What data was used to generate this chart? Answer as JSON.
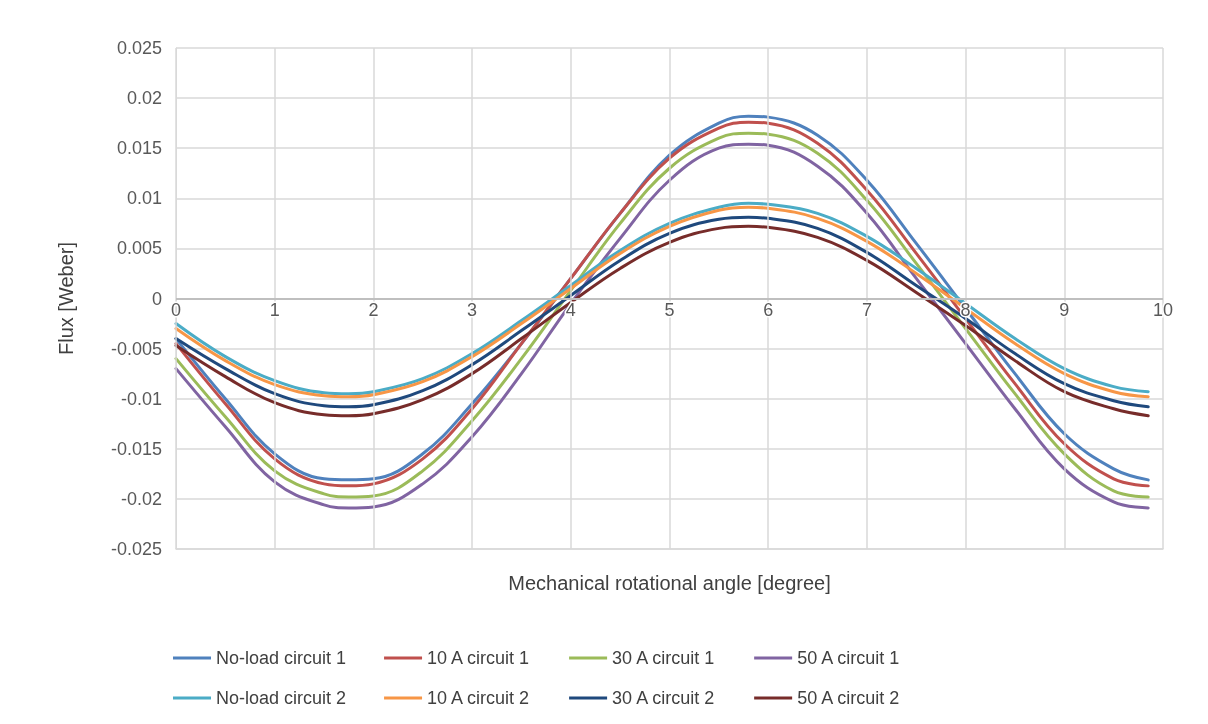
{
  "chart_data": {
    "type": "line",
    "xlabel": "Mechanical rotational angle [degree]",
    "ylabel": "Flux [Weber]",
    "x": [
      0,
      0.5,
      1,
      1.5,
      1.75,
      2,
      2.5,
      3,
      3.5,
      4,
      4.5,
      5,
      5.5,
      5.8,
      6,
      6.5,
      7,
      7.5,
      8,
      8.5,
      9,
      9.5,
      9.85
    ],
    "xlim": [
      0,
      10
    ],
    "xticks": [
      0,
      1,
      2,
      3,
      4,
      5,
      6,
      7,
      8,
      9,
      10
    ],
    "ylim": [
      -0.025,
      0.025
    ],
    "yticks": [
      -0.025,
      -0.02,
      -0.015,
      -0.01,
      -0.005,
      0,
      0.005,
      0.01,
      0.015,
      0.02,
      0.025
    ],
    "grid": true,
    "legend": "bottom",
    "marker": "none",
    "line_style": "solid",
    "series": [
      {
        "name": "No-load circuit 1",
        "color": "#4f81bd",
        "values": [
          -0.004,
          -0.01,
          -0.0155,
          -0.018,
          -0.0181,
          -0.018,
          -0.0155,
          -0.0105,
          -0.0045,
          0.002,
          0.0085,
          0.0143,
          0.0175,
          0.0182,
          0.0181,
          0.0163,
          0.0118,
          0.0055,
          -0.001,
          -0.0075,
          -0.0135,
          -0.017,
          -0.0181
        ]
      },
      {
        "name": "10 A circuit 1",
        "color": "#c0504d",
        "values": [
          -0.0045,
          -0.0105,
          -0.016,
          -0.0185,
          -0.0187,
          -0.0185,
          -0.016,
          -0.011,
          -0.0045,
          0.002,
          0.0085,
          0.014,
          0.017,
          0.0176,
          0.0175,
          0.0155,
          0.0108,
          0.0045,
          -0.002,
          -0.0085,
          -0.0145,
          -0.018,
          -0.0187
        ]
      },
      {
        "name": "30 A circuit 1",
        "color": "#9bbb59",
        "values": [
          -0.006,
          -0.0118,
          -0.0172,
          -0.0195,
          -0.0198,
          -0.0197,
          -0.0172,
          -0.0122,
          -0.006,
          0.0008,
          0.0075,
          0.013,
          0.016,
          0.0165,
          0.0164,
          0.0145,
          0.0098,
          0.0035,
          -0.003,
          -0.0095,
          -0.0155,
          -0.0192,
          -0.0198
        ]
      },
      {
        "name": "50 A circuit 1",
        "color": "#8064a2",
        "values": [
          -0.007,
          -0.0128,
          -0.0183,
          -0.0206,
          -0.0209,
          -0.0208,
          -0.0185,
          -0.0138,
          -0.0075,
          -0.0005,
          0.006,
          0.0118,
          0.015,
          0.0154,
          0.0153,
          0.0132,
          0.0085,
          0.002,
          -0.0045,
          -0.011,
          -0.017,
          -0.0203,
          -0.0209
        ]
      },
      {
        "name": "No-load circuit 2",
        "color": "#4bacc6",
        "values": [
          -0.0025,
          -0.0058,
          -0.0082,
          -0.0094,
          -0.0095,
          -0.0093,
          -0.008,
          -0.0055,
          -0.0022,
          0.0013,
          0.0048,
          0.0075,
          0.0091,
          0.0095,
          0.0094,
          0.0085,
          0.0062,
          0.003,
          -0.0005,
          -0.004,
          -0.007,
          -0.0088,
          -0.0093
        ]
      },
      {
        "name": "10 A circuit 2",
        "color": "#f79646",
        "values": [
          -0.003,
          -0.0062,
          -0.0086,
          -0.0097,
          -0.0098,
          -0.0096,
          -0.0083,
          -0.0058,
          -0.0025,
          0.001,
          0.0045,
          0.0072,
          0.0088,
          0.0091,
          0.009,
          0.008,
          0.0057,
          0.0025,
          -0.001,
          -0.0045,
          -0.0075,
          -0.0093,
          -0.0098
        ]
      },
      {
        "name": "30 A circuit 2",
        "color": "#1f497d",
        "values": [
          -0.004,
          -0.007,
          -0.0095,
          -0.0107,
          -0.0108,
          -0.0106,
          -0.0092,
          -0.0066,
          -0.0032,
          0.0003,
          0.0038,
          0.0065,
          0.0079,
          0.0081,
          0.008,
          0.007,
          0.0046,
          0.0013,
          -0.002,
          -0.0055,
          -0.0085,
          -0.0102,
          -0.0108
        ]
      },
      {
        "name": "50 A circuit 2",
        "color": "#772c2a",
        "values": [
          -0.0047,
          -0.0078,
          -0.0104,
          -0.0116,
          -0.0117,
          -0.0115,
          -0.0101,
          -0.0075,
          -0.004,
          -0.0004,
          0.003,
          0.0056,
          0.007,
          0.0072,
          0.0071,
          0.0061,
          0.0038,
          0.0006,
          -0.0027,
          -0.0062,
          -0.0093,
          -0.011,
          -0.0117
        ]
      }
    ]
  }
}
